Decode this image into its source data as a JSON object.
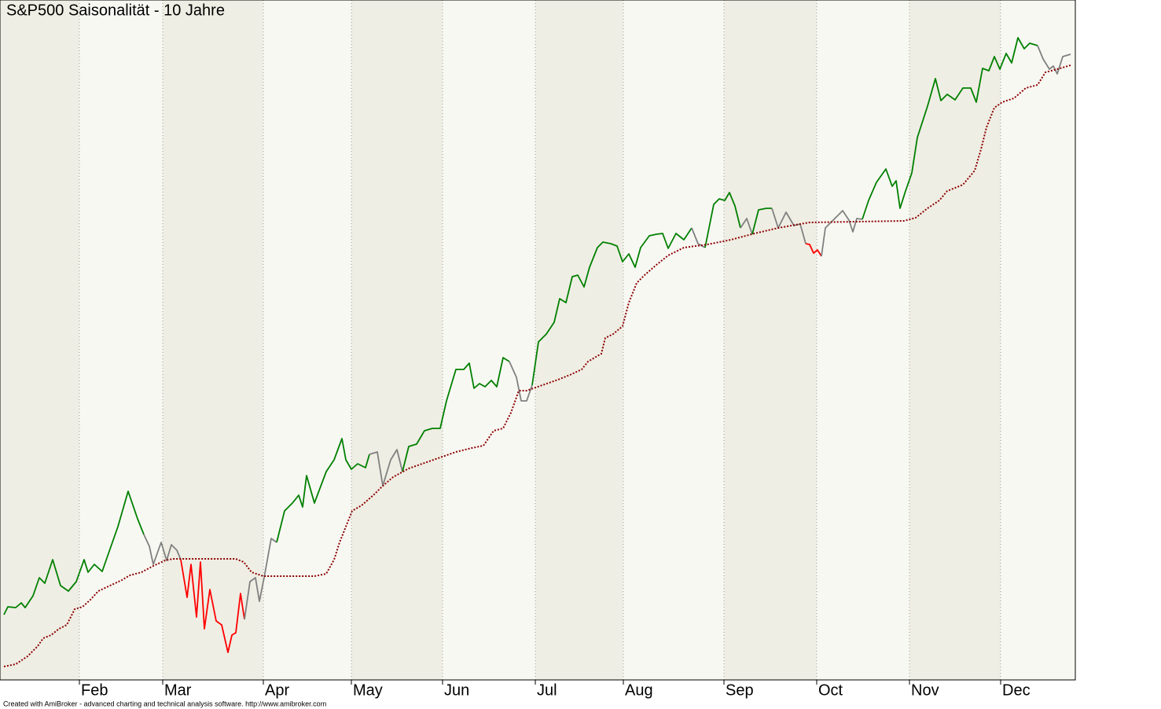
{
  "chart_data": {
    "type": "line",
    "title": "S&P500  Saisonalität - 10 Jahre",
    "footer": "Created with AmiBroker - advanced charting and technical analysis software. http://www.amibroker.com",
    "xlim": [
      0,
      1368
    ],
    "ylim": [
      0,
      865
    ],
    "xticks": [
      {
        "value": 101,
        "label": "Feb"
      },
      {
        "value": 207,
        "label": "Mar"
      },
      {
        "value": 335,
        "label": "Apr"
      },
      {
        "value": 447,
        "label": "May"
      },
      {
        "value": 563,
        "label": "Jun"
      },
      {
        "value": 681,
        "label": "Jul"
      },
      {
        "value": 793,
        "label": "Aug"
      },
      {
        "value": 921,
        "label": "Sep"
      },
      {
        "value": 1039,
        "label": "Oct"
      },
      {
        "value": 1157,
        "label": "Nov"
      },
      {
        "value": 1273,
        "label": "Dec"
      }
    ],
    "band_colors": [
      "#efeee4",
      "#f8f8f3"
    ],
    "grid": true,
    "series": [
      {
        "color": "#008000",
        "x": [
          5,
          10,
          20,
          27,
          32,
          42,
          50,
          57,
          67,
          77,
          87,
          97,
          107,
          112,
          120,
          130,
          137,
          150,
          163,
          175,
          183
        ],
        "values": [
          83,
          93,
          92,
          98,
          92,
          107,
          130,
          123,
          153,
          120,
          113,
          125,
          153,
          137,
          147,
          138,
          158,
          195,
          240,
          205,
          185
        ]
      },
      {
        "color": "#808080",
        "x": [
          183,
          190,
          195,
          205,
          212,
          218,
          225,
          230
        ],
        "values": [
          185,
          170,
          147,
          175,
          152,
          172,
          165,
          153
        ]
      },
      {
        "color": "#ff0000",
        "x": [
          230,
          238,
          243,
          250,
          255,
          260,
          267,
          275,
          282,
          290,
          295,
          300,
          306,
          311
        ],
        "values": [
          153,
          105,
          147,
          80,
          150,
          65,
          115,
          75,
          70,
          35,
          57,
          60,
          110,
          77
        ]
      },
      {
        "color": "#808080",
        "x": [
          311,
          318,
          325,
          330,
          336,
          345,
          352
        ],
        "values": [
          77,
          125,
          130,
          100,
          130,
          180,
          175
        ]
      },
      {
        "color": "#008000",
        "x": [
          352,
          362,
          372,
          380,
          385,
          390,
          400,
          415,
          425,
          435,
          440,
          447,
          455,
          465,
          470
        ],
        "values": [
          175,
          215,
          225,
          235,
          220,
          260,
          225,
          265,
          280,
          307,
          280,
          268,
          275,
          270,
          287
        ]
      },
      {
        "color": "#808080",
        "x": [
          470,
          480,
          487,
          497,
          505,
          512
        ],
        "values": [
          287,
          290,
          247,
          280,
          293,
          265
        ]
      },
      {
        "color": "#008000",
        "x": [
          512,
          520,
          530,
          540,
          550,
          560,
          568,
          580,
          590,
          597,
          603,
          610,
          617,
          625,
          632,
          640,
          648
        ],
        "values": [
          265,
          297,
          300,
          317,
          320,
          320,
          355,
          395,
          395,
          403,
          371,
          377,
          373,
          381,
          373,
          410,
          405
        ]
      },
      {
        "color": "#808080",
        "x": [
          648,
          657,
          663,
          670,
          677
        ],
        "values": [
          405,
          385,
          355,
          355,
          375
        ]
      },
      {
        "color": "#008000",
        "x": [
          677,
          685,
          695,
          705,
          712,
          720,
          728,
          735,
          743,
          750,
          760,
          767,
          777,
          785,
          792,
          800,
          808,
          815,
          826,
          835,
          843,
          850,
          860,
          870,
          880
        ],
        "values": [
          375,
          430,
          440,
          455,
          485,
          480,
          513,
          515,
          500,
          525,
          550,
          557,
          555,
          552,
          532,
          542,
          525,
          550,
          565,
          567,
          568,
          549,
          568,
          560,
          575
        ]
      },
      {
        "color": "#808080",
        "x": [
          880,
          888,
          897
        ],
        "values": [
          575,
          555,
          550
        ]
      },
      {
        "color": "#008000",
        "x": [
          897,
          908,
          915,
          922,
          928,
          935,
          942
        ],
        "values": [
          550,
          605,
          612,
          610,
          620,
          603,
          575
        ]
      },
      {
        "color": "#808080",
        "x": [
          942,
          950,
          957
        ],
        "values": [
          575,
          587,
          567
        ]
      },
      {
        "color": "#008000",
        "x": [
          957,
          965,
          975,
          982
        ],
        "values": [
          567,
          598,
          600,
          600
        ]
      },
      {
        "color": "#808080",
        "x": [
          982,
          990,
          1000,
          1010,
          1018,
          1025
        ],
        "values": [
          600,
          575,
          595,
          578,
          580,
          555
        ]
      },
      {
        "color": "#ff0000",
        "x": [
          1025,
          1030,
          1035,
          1040,
          1045
        ],
        "values": [
          555,
          554,
          543,
          547,
          539
        ]
      },
      {
        "color": "#808080",
        "x": [
          1045,
          1050,
          1060,
          1072,
          1080,
          1085,
          1090,
          1097
        ],
        "values": [
          539,
          575,
          585,
          597,
          585,
          570,
          587,
          586
        ]
      },
      {
        "color": "#008000",
        "x": [
          1097,
          1105,
          1115,
          1127,
          1135,
          1140,
          1145,
          1152,
          1160,
          1167,
          1180,
          1190,
          1197,
          1205,
          1215,
          1225,
          1235,
          1242,
          1250,
          1258,
          1265,
          1272,
          1280,
          1287,
          1295,
          1303,
          1310,
          1320
        ],
        "values": [
          586,
          610,
          633,
          650,
          628,
          635,
          600,
          622,
          645,
          690,
          730,
          765,
          737,
          745,
          738,
          753,
          753,
          735,
          778,
          775,
          793,
          777,
          797,
          785,
          817,
          803,
          810,
          807
        ]
      },
      {
        "color": "#808080",
        "x": [
          1320,
          1327,
          1335,
          1340,
          1345,
          1352,
          1362
        ],
        "values": [
          807,
          790,
          777,
          781,
          771,
          793,
          796
        ]
      },
      {
        "color": "#8b0000",
        "line_style": "dotted",
        "x": [
          5,
          20,
          35,
          48,
          55,
          65,
          75,
          85,
          95,
          105,
          115,
          125,
          140,
          155,
          165,
          180,
          195,
          210,
          220,
          300,
          310,
          320,
          335,
          400,
          415,
          425,
          432,
          440,
          448,
          460,
          475,
          485,
          500,
          520,
          540,
          560,
          580,
          600,
          615,
          628,
          640,
          650,
          660,
          670,
          690,
          710,
          725,
          740,
          748,
          765,
          770,
          780,
          792,
          800,
          810,
          820,
          835,
          850,
          870,
          900,
          930,
          960,
          990,
          1018,
          1030,
          1150,
          1165,
          1180,
          1195,
          1205,
          1225,
          1240,
          1248,
          1255,
          1265,
          1275,
          1290,
          1305,
          1320,
          1330,
          1345,
          1362
        ],
        "values": [
          17,
          20,
          30,
          43,
          53,
          57,
          65,
          70,
          90,
          93,
          102,
          113,
          120,
          127,
          133,
          137,
          145,
          152,
          154,
          154,
          150,
          137,
          132,
          132,
          135,
          153,
          175,
          195,
          215,
          222,
          235,
          245,
          258,
          269,
          276,
          283,
          290,
          295,
          298,
          317,
          320,
          340,
          368,
          368,
          375,
          382,
          388,
          395,
          405,
          415,
          435,
          440,
          450,
          480,
          505,
          515,
          528,
          540,
          550,
          554,
          560,
          568,
          575,
          580,
          582,
          584,
          588,
          600,
          610,
          622,
          630,
          648,
          675,
          703,
          728,
          735,
          740,
          753,
          757,
          773,
          777,
          782
        ]
      }
    ]
  }
}
